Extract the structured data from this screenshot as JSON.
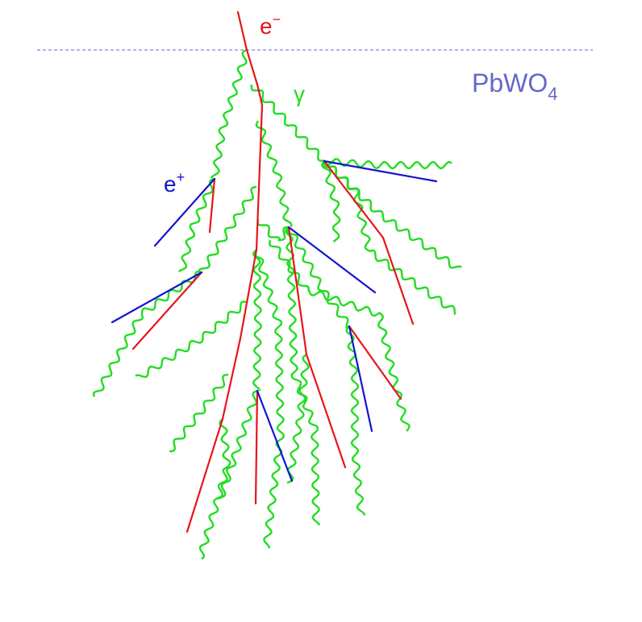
{
  "labels": {
    "electron": "e",
    "electron_sup": "−",
    "photon": "γ",
    "positron": "e",
    "positron_sup": "+",
    "material": "PbWO",
    "material_sub": "4"
  },
  "colors": {
    "electron": "#e8141c",
    "positron": "#1414d0",
    "photon": "#22dd22",
    "boundary": "#6666cc",
    "material_label": "#6666cc"
  },
  "legend_items": [
    "electron",
    "positron",
    "photon"
  ]
}
